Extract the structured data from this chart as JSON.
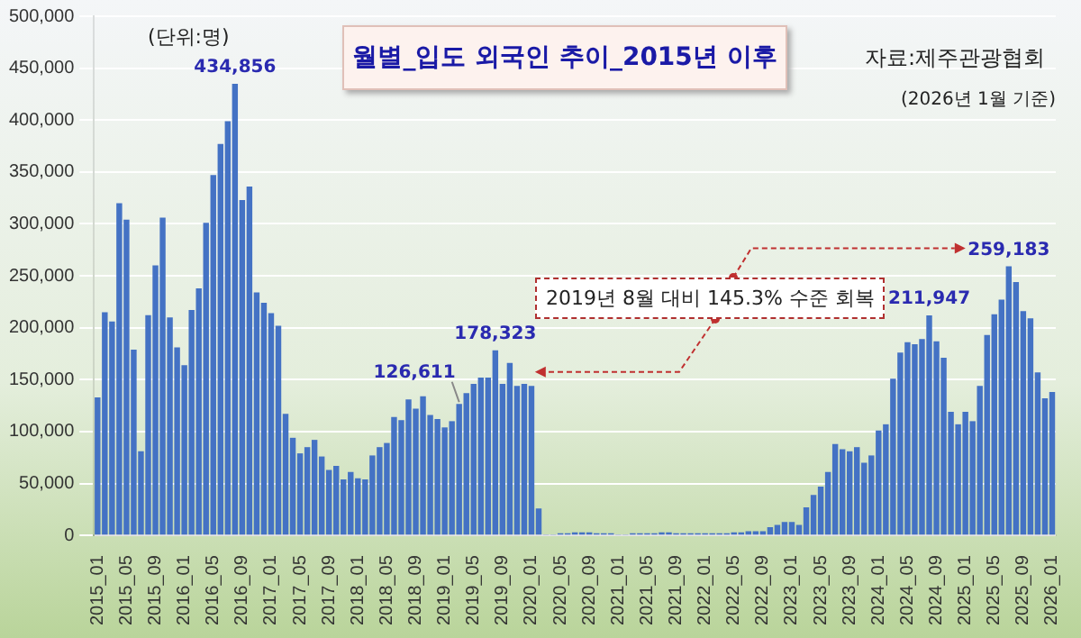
{
  "chart_data": {
    "type": "bar",
    "title": "월별_입도 외국인 추이_2015년 이후",
    "annotations": [
      "(단위:명)",
      "자료:제주관광협회",
      "(2026년 1월 기준)",
      "2019년 8월 대비 145.3% 수준 회복"
    ],
    "categories": [
      "2015_01",
      null,
      null,
      null,
      "2015_05",
      null,
      null,
      null,
      "2015_09",
      null,
      null,
      null,
      "2016_01",
      null,
      null,
      null,
      "2016_05",
      null,
      null,
      null,
      "2016_09",
      null,
      null,
      null,
      "2017_01",
      null,
      null,
      null,
      "2017_05",
      null,
      null,
      null,
      "2017_09",
      null,
      null,
      null,
      "2018_01",
      null,
      null,
      null,
      "2018_05",
      null,
      null,
      null,
      "2018_09",
      null,
      null,
      null,
      "2019_01",
      null,
      null,
      null,
      "2019_05",
      null,
      null,
      null,
      "2019_09",
      null,
      null,
      null,
      "2020_01",
      null,
      null,
      null,
      "2020_05",
      null,
      null,
      null,
      "2020_09",
      null,
      null,
      null,
      "2021_01",
      null,
      null,
      null,
      "2021_05",
      null,
      null,
      null,
      "2021_09",
      null,
      null,
      null,
      "2022_01",
      null,
      null,
      null,
      "2022_05",
      null,
      null,
      null,
      "2022_09",
      null,
      null,
      null,
      "2023_01",
      null,
      null,
      null,
      "2023_05",
      null,
      null,
      null,
      "2023_09",
      null,
      null,
      null,
      "2024_01",
      null,
      null,
      null,
      "2024_05",
      null,
      null,
      null,
      "2024_09",
      null,
      null,
      null,
      "2025_01",
      null,
      null,
      null,
      "2025_05",
      null,
      null,
      null,
      "2025_09",
      null,
      null,
      null,
      "2026_01"
    ],
    "values": [
      133000,
      215000,
      206000,
      320000,
      304000,
      179000,
      81000,
      212000,
      260000,
      306000,
      210000,
      181000,
      164000,
      217000,
      238000,
      301000,
      347000,
      377000,
      399000,
      434856,
      323000,
      336000,
      234000,
      224000,
      214000,
      202000,
      117000,
      94000,
      79000,
      85000,
      92000,
      76000,
      63000,
      67000,
      54000,
      61000,
      55000,
      54000,
      77000,
      85000,
      89000,
      114000,
      111000,
      131000,
      122000,
      134000,
      116000,
      112000,
      104000,
      110000,
      126611,
      137000,
      146000,
      152000,
      152000,
      178323,
      146000,
      166000,
      144000,
      146000,
      144000,
      26000,
      1000,
      1000,
      2000,
      2000,
      3000,
      3000,
      3000,
      2000,
      2000,
      2000,
      1000,
      1000,
      2000,
      2000,
      2000,
      2000,
      3000,
      3000,
      2000,
      2000,
      2000,
      2000,
      2000,
      2000,
      2000,
      2000,
      3000,
      3000,
      4000,
      4000,
      4000,
      8000,
      10000,
      13000,
      13000,
      10000,
      27000,
      39000,
      47000,
      61000,
      88000,
      83000,
      81000,
      85000,
      70000,
      77000,
      101000,
      107000,
      151000,
      176000,
      186000,
      184000,
      189000,
      211947,
      187000,
      171000,
      119000,
      107000,
      119000,
      110000,
      144000,
      193000,
      213000,
      227000,
      259183,
      244000,
      216000,
      209000,
      157000,
      132000,
      138000
    ],
    "value_labels": [
      null,
      null,
      null,
      null,
      null,
      null,
      null,
      null,
      null,
      null,
      null,
      null,
      null,
      null,
      null,
      null,
      null,
      null,
      null,
      "434,856",
      null,
      null,
      null,
      null,
      null,
      null,
      null,
      null,
      null,
      null,
      null,
      null,
      null,
      null,
      null,
      null,
      null,
      null,
      null,
      null,
      null,
      null,
      null,
      null,
      null,
      null,
      null,
      null,
      null,
      null,
      "126,611",
      null,
      null,
      null,
      null,
      "178,323",
      null,
      null,
      null,
      null,
      null,
      null,
      null,
      null,
      null,
      null,
      null,
      null,
      null,
      null,
      null,
      null,
      null,
      null,
      null,
      null,
      null,
      null,
      null,
      null,
      null,
      null,
      null,
      null,
      null,
      null,
      null,
      null,
      null,
      null,
      null,
      null,
      null,
      null,
      null,
      null,
      null,
      null,
      null,
      null,
      null,
      null,
      null,
      null,
      null,
      null,
      null,
      null,
      null,
      null,
      null,
      null,
      null,
      null,
      null,
      "211,947",
      null,
      null,
      null,
      null,
      null,
      null,
      null,
      null,
      null,
      null,
      "259,183",
      null,
      null,
      null,
      null,
      null,
      null
    ],
    "color": "#4472c4",
    "ylim": [
      0,
      500000
    ],
    "yticks": [
      {
        "value": 0,
        "label": "0"
      },
      {
        "value": 50000,
        "label": "50,000"
      },
      {
        "value": 100000,
        "label": "100,000"
      },
      {
        "value": 150000,
        "label": "150,000"
      },
      {
        "value": 200000,
        "label": "200,000"
      },
      {
        "value": 250000,
        "label": "250,000"
      },
      {
        "value": 300000,
        "label": "300,000"
      },
      {
        "value": 350000,
        "label": "350,000"
      },
      {
        "value": 400000,
        "label": "400,000"
      },
      {
        "value": 450000,
        "label": "450,000"
      },
      {
        "value": 500000,
        "label": "500,000"
      }
    ],
    "grid": "y",
    "legend": false
  }
}
